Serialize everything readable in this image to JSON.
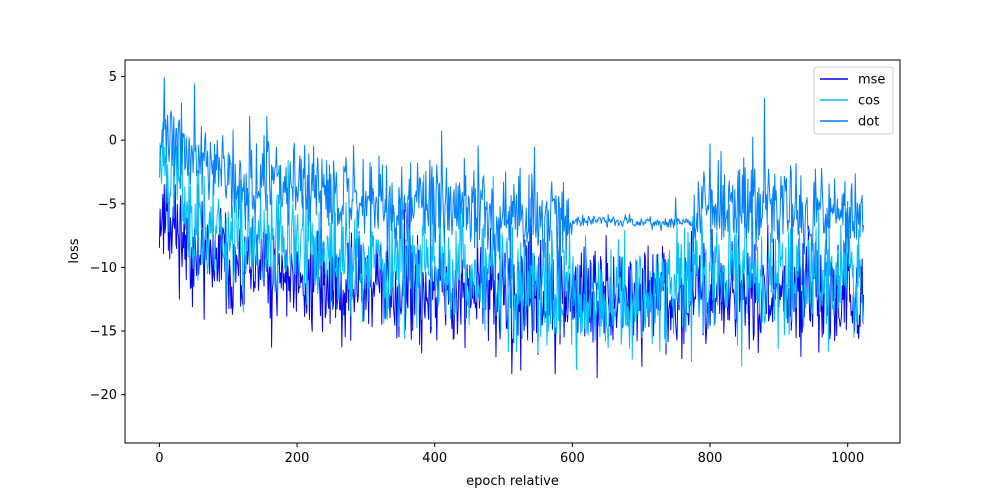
{
  "chart_data": {
    "type": "line",
    "title": "",
    "xlabel": "epoch relative",
    "ylabel": "loss",
    "xlim": [
      -50,
      1076
    ],
    "ylim": [
      -23.8,
      6.3
    ],
    "x_ticks": [
      0,
      200,
      400,
      600,
      800,
      1000
    ],
    "y_ticks": [
      5,
      0,
      -5,
      -10,
      -15,
      -20
    ],
    "y_tick_labels": [
      "5",
      "0",
      "−5",
      "−10",
      "−15",
      "−20"
    ],
    "grid": false,
    "legend_position": "top-right",
    "n_points": 1024,
    "series": [
      {
        "name": "mse",
        "color": "#0000ff",
        "noise_seed": 11,
        "amplitude": 3.0,
        "spike_up": 4.0,
        "spike_down": 5.0,
        "envelope": [
          [
            0,
            -6.0
          ],
          [
            10,
            -6.0
          ],
          [
            60,
            -9.0
          ],
          [
            150,
            -10.5
          ],
          [
            300,
            -11.5
          ],
          [
            500,
            -12.5
          ],
          [
            600,
            -12.5
          ],
          [
            700,
            -12.0
          ],
          [
            780,
            -12.0
          ],
          [
            900,
            -12.0
          ],
          [
            1024,
            -12.0
          ]
        ],
        "y_range": [
          -22.5,
          -3.5
        ]
      },
      {
        "name": "cos",
        "color": "#00bfff",
        "noise_seed": 23,
        "amplitude": 3.5,
        "spike_up": 4.0,
        "spike_down": 4.0,
        "envelope": [
          [
            0,
            -1.5
          ],
          [
            10,
            -2.0
          ],
          [
            60,
            -6.5
          ],
          [
            150,
            -8.5
          ],
          [
            300,
            -9.5
          ],
          [
            500,
            -10.5
          ],
          [
            560,
            -11.5
          ],
          [
            600,
            -12.5
          ],
          [
            700,
            -12.5
          ],
          [
            780,
            -11.0
          ],
          [
            900,
            -10.5
          ],
          [
            1024,
            -10.5
          ]
        ],
        "y_range": [
          -21.0,
          1.5
        ]
      },
      {
        "name": "dot",
        "color": "#0080ff",
        "noise_seed": 37,
        "amplitude": 2.5,
        "spike_up": 5.0,
        "spike_down": 6.0,
        "calm_range": [
          600,
          775
        ],
        "calm_amplitude": 0.35,
        "envelope": [
          [
            0,
            0.0
          ],
          [
            20,
            0.0
          ],
          [
            80,
            -2.5
          ],
          [
            150,
            -3.5
          ],
          [
            300,
            -4.5
          ],
          [
            500,
            -5.5
          ],
          [
            580,
            -6.5
          ],
          [
            600,
            -6.3
          ],
          [
            775,
            -6.5
          ],
          [
            790,
            -5.0
          ],
          [
            900,
            -5.5
          ],
          [
            1024,
            -6.0
          ]
        ],
        "y_range": [
          -21.5,
          4.9
        ]
      }
    ]
  }
}
